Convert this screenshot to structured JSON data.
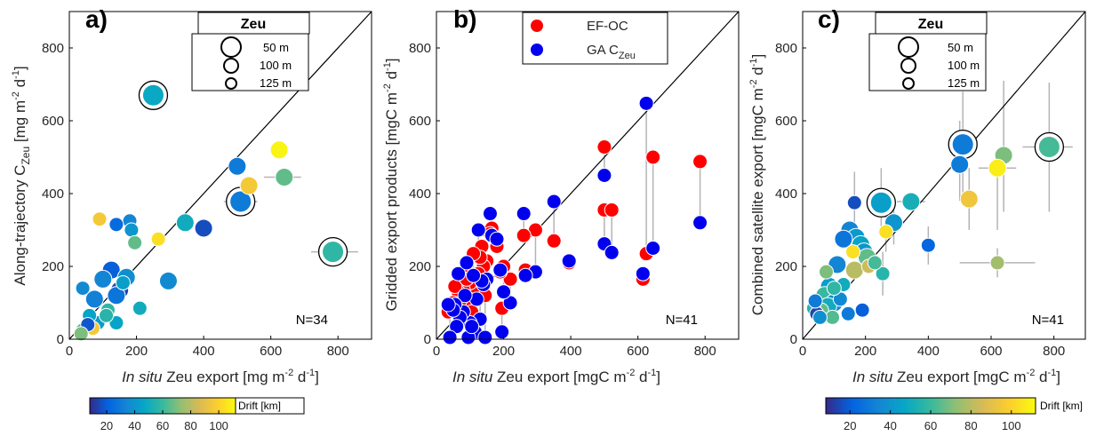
{
  "colors": {
    "ef_oc": "#ff0000",
    "ga_czeu": "#0000ee",
    "error_bar": "#b4b4b4",
    "one_to_one": "#000000",
    "colormap_parula": [
      "#352a87",
      "#0363e1",
      "#1485d4",
      "#06a7c6",
      "#38b99e",
      "#92bf73",
      "#d9ba56",
      "#fcce2e",
      "#f9fb0e"
    ]
  },
  "chart_data": [
    {
      "panel": "a)",
      "type": "scatter",
      "xlabel_italic": "In situ",
      "xlabel_rest": " Zeu export [mg m",
      "xlabel_sup": "-2",
      "xlabel_mid": " d",
      "xlabel_sup2": "-1",
      "xlabel_end": "]",
      "ylabel_main": "Along-trajectory C",
      "ylabel_sub": "Zeu",
      "ylabel_rest": "  [mg m",
      "ylabel_sup": "-2",
      "ylabel_mid": " d",
      "ylabel_sup2": "-1",
      "ylabel_end": "]",
      "xlim": [
        0,
        900
      ],
      "ylim": [
        0,
        900
      ],
      "xticks": [
        "0",
        "200",
        "400",
        "600",
        "800"
      ],
      "yticks": [
        "0",
        "200",
        "400",
        "600",
        "800"
      ],
      "note": "N=34",
      "legend": {
        "title": "Zeu",
        "entries": [
          "50 m",
          "100 m",
          "125 m"
        ]
      },
      "points": [
        {
          "x": 250,
          "y": 670,
          "s": "l",
          "d": 48,
          "ring": true
        },
        {
          "x": 785,
          "y": 240,
          "s": "l",
          "d": 58,
          "ring": true
        },
        {
          "x": 510,
          "y": 378,
          "s": "l",
          "d": 30,
          "ring": true
        },
        {
          "x": 500,
          "y": 475,
          "s": "m",
          "d": 30
        },
        {
          "x": 625,
          "y": 520,
          "s": "m",
          "d": 110
        },
        {
          "x": 535,
          "y": 422,
          "s": "m",
          "d": 96
        },
        {
          "x": 640,
          "y": 445,
          "s": "m",
          "d": 66
        },
        {
          "x": 400,
          "y": 305,
          "s": "m",
          "d": 16
        },
        {
          "x": 345,
          "y": 320,
          "s": "m",
          "d": 50
        },
        {
          "x": 265,
          "y": 275,
          "s": "s",
          "d": 104
        },
        {
          "x": 180,
          "y": 325,
          "s": "s",
          "d": 34
        },
        {
          "x": 140,
          "y": 315,
          "s": "s",
          "d": 24
        },
        {
          "x": 90,
          "y": 330,
          "s": "s",
          "d": 96
        },
        {
          "x": 185,
          "y": 300,
          "s": "s",
          "d": 40
        },
        {
          "x": 195,
          "y": 265,
          "s": "s",
          "d": 66
        },
        {
          "x": 295,
          "y": 160,
          "s": "m",
          "d": 36
        },
        {
          "x": 125,
          "y": 190,
          "s": "m",
          "d": 20
        },
        {
          "x": 170,
          "y": 170,
          "s": "m",
          "d": 38
        },
        {
          "x": 100,
          "y": 165,
          "s": "m",
          "d": 34
        },
        {
          "x": 150,
          "y": 135,
          "s": "m",
          "d": 14
        },
        {
          "x": 75,
          "y": 110,
          "s": "m",
          "d": 32
        },
        {
          "x": 140,
          "y": 120,
          "s": "m",
          "d": 28
        },
        {
          "x": 210,
          "y": 85,
          "s": "s",
          "d": 50
        },
        {
          "x": 140,
          "y": 45,
          "s": "s",
          "d": 46
        },
        {
          "x": 115,
          "y": 80,
          "s": "s",
          "d": 58
        },
        {
          "x": 40,
          "y": 140,
          "s": "s",
          "d": 36
        },
        {
          "x": 85,
          "y": 45,
          "s": "s",
          "d": 42
        },
        {
          "x": 60,
          "y": 65,
          "s": "s",
          "d": 46
        },
        {
          "x": 40,
          "y": 25,
          "s": "s",
          "d": 62
        },
        {
          "x": 70,
          "y": 30,
          "s": "s",
          "d": 96
        },
        {
          "x": 55,
          "y": 40,
          "s": "s",
          "d": 18
        },
        {
          "x": 35,
          "y": 15,
          "s": "s",
          "d": 70
        },
        {
          "x": 110,
          "y": 65,
          "s": "s",
          "d": 56
        },
        {
          "x": 160,
          "y": 155,
          "s": "s",
          "d": 44
        }
      ],
      "xerr": [
        {
          "y": 240,
          "x0": 720,
          "x1": 860
        },
        {
          "y": 445,
          "x0": 580,
          "x1": 690
        },
        {
          "y": 378,
          "x0": 460,
          "x1": 560
        }
      ]
    },
    {
      "panel": "b)",
      "type": "scatter",
      "xlabel_italic": "In situ",
      "xlabel_rest": " Zeu export [mgC m",
      "xlabel_sup": "-2",
      "xlabel_mid": " d",
      "xlabel_sup2": "-1",
      "xlabel_end": "]",
      "ylabel_main": "Gridded export products [mgC m",
      "ylabel_sup": "-2",
      "ylabel_mid": " d",
      "ylabel_sup2": "-1",
      "ylabel_end": "]",
      "xlim": [
        0,
        900
      ],
      "ylim": [
        0,
        900
      ],
      "xticks": [
        "0",
        "200",
        "400",
        "600",
        "800"
      ],
      "yticks": [
        "0",
        "200",
        "400",
        "600",
        "800"
      ],
      "note": "N=41",
      "legend": {
        "entries": [
          {
            "label": "EF-OC",
            "sub": ""
          },
          {
            "label": "GA C",
            "sub": "Zeu"
          }
        ]
      },
      "pairs": [
        {
          "x": 500,
          "r": 528,
          "b": 450
        },
        {
          "x": 500,
          "r": 355,
          "b": 262
        },
        {
          "x": 522,
          "r": 355,
          "b": 238
        },
        {
          "x": 625,
          "r": 235,
          "b": 648
        },
        {
          "x": 645,
          "r": 500,
          "b": 250
        },
        {
          "x": 615,
          "r": 165,
          "b": 180
        },
        {
          "x": 785,
          "r": 488,
          "b": 320
        },
        {
          "x": 395,
          "r": 210,
          "b": 215
        },
        {
          "x": 350,
          "r": 270,
          "b": 378
        },
        {
          "x": 295,
          "r": 300,
          "b": 185
        },
        {
          "x": 260,
          "r": 285,
          "b": 345
        },
        {
          "x": 265,
          "r": 190,
          "b": 175
        },
        {
          "x": 220,
          "r": 165,
          "b": 100
        },
        {
          "x": 195,
          "r": 85,
          "b": 20
        },
        {
          "x": 190,
          "r": 185,
          "b": 190
        },
        {
          "x": 165,
          "r": 305,
          "b": 285
        },
        {
          "x": 160,
          "r": 290,
          "b": 345
        },
        {
          "x": 150,
          "r": 215,
          "b": 165
        },
        {
          "x": 140,
          "r": 200,
          "b": 150
        },
        {
          "x": 135,
          "r": 255,
          "b": 160
        },
        {
          "x": 130,
          "r": 225,
          "b": 55
        },
        {
          "x": 120,
          "r": 170,
          "b": 110
        },
        {
          "x": 115,
          "r": 145,
          "b": 20
        },
        {
          "x": 110,
          "r": 235,
          "b": 175
        },
        {
          "x": 100,
          "r": 155,
          "b": 45
        },
        {
          "x": 95,
          "r": 110,
          "b": 5
        },
        {
          "x": 85,
          "r": 190,
          "b": 120
        },
        {
          "x": 80,
          "r": 135,
          "b": 75
        },
        {
          "x": 70,
          "r": 105,
          "b": 60
        },
        {
          "x": 65,
          "r": 130,
          "b": 180
        },
        {
          "x": 60,
          "r": 85,
          "b": 35
        },
        {
          "x": 55,
          "r": 145,
          "b": 95
        },
        {
          "x": 50,
          "r": 100,
          "b": 80
        },
        {
          "x": 40,
          "r": 90,
          "b": 5
        },
        {
          "x": 35,
          "r": 75,
          "b": 95
        },
        {
          "x": 180,
          "r": 255,
          "b": 275
        },
        {
          "x": 145,
          "r": 120,
          "b": 5
        },
        {
          "x": 125,
          "r": 180,
          "b": 300
        },
        {
          "x": 105,
          "r": 75,
          "b": 35
        },
        {
          "x": 90,
          "r": 165,
          "b": 210
        },
        {
          "x": 200,
          "r": 200,
          "b": 130
        }
      ]
    },
    {
      "panel": "c)",
      "type": "scatter",
      "xlabel_italic": "In situ",
      "xlabel_rest": " Zeu export [mgC m",
      "xlabel_sup": "-2",
      "xlabel_mid": " d",
      "xlabel_sup2": "-1",
      "xlabel_end": "]",
      "ylabel_main": "Combined satellite export [mgC m",
      "ylabel_sup": "-2",
      "ylabel_mid": " d",
      "ylabel_sup2": "-1",
      "ylabel_end": "]",
      "xlim": [
        0,
        900
      ],
      "ylim": [
        0,
        900
      ],
      "xticks": [
        "0",
        "200",
        "400",
        "600",
        "800"
      ],
      "yticks": [
        "0",
        "200",
        "400",
        "600",
        "800"
      ],
      "note": "N=41",
      "legend": {
        "title": "Zeu",
        "entries": [
          "50 m",
          "100 m",
          "125 m"
        ]
      },
      "points": [
        {
          "x": 785,
          "y": 528,
          "s": "l",
          "d": 62,
          "ring": true,
          "ey": [
            350,
            705
          ],
          "ex": [
            700,
            860
          ]
        },
        {
          "x": 510,
          "y": 535,
          "s": "l",
          "d": 30,
          "ring": true,
          "ey": [
            380,
            680
          ]
        },
        {
          "x": 250,
          "y": 375,
          "s": "l",
          "d": 44,
          "ring": true,
          "ey": [
            280,
            470
          ]
        },
        {
          "x": 500,
          "y": 480,
          "s": "m",
          "d": 30,
          "ey": [
            380,
            600
          ]
        },
        {
          "x": 640,
          "y": 505,
          "s": "m",
          "d": 70,
          "ey": [
            350,
            710
          ]
        },
        {
          "x": 620,
          "y": 470,
          "s": "m",
          "d": 108,
          "ey": [
            300,
            520
          ],
          "ex": [
            560,
            680
          ]
        },
        {
          "x": 530,
          "y": 385,
          "s": "m",
          "d": 94,
          "ey": [
            300,
            470
          ]
        },
        {
          "x": 345,
          "y": 378,
          "s": "m",
          "d": 52,
          "ex": [
            300,
            390
          ]
        },
        {
          "x": 290,
          "y": 320,
          "s": "m",
          "d": 40,
          "ey": [
            260,
            380
          ]
        },
        {
          "x": 400,
          "y": 258,
          "s": "s",
          "d": 22,
          "ey": [
            205,
            310
          ]
        },
        {
          "x": 620,
          "y": 210,
          "s": "s",
          "d": 76,
          "ex": [
            500,
            740
          ],
          "ey": [
            170,
            250
          ]
        },
        {
          "x": 255,
          "y": 180,
          "s": "s",
          "d": 56,
          "ey": [
            120,
            240
          ]
        },
        {
          "x": 265,
          "y": 295,
          "s": "s",
          "d": 104,
          "ey": [
            240,
            360
          ]
        },
        {
          "x": 165,
          "y": 375,
          "s": "s",
          "d": 16,
          "ey": [
            300,
            460
          ]
        },
        {
          "x": 150,
          "y": 300,
          "s": "m",
          "d": 34
        },
        {
          "x": 170,
          "y": 280,
          "s": "m",
          "d": 42
        },
        {
          "x": 185,
          "y": 260,
          "s": "m",
          "d": 46
        },
        {
          "x": 195,
          "y": 240,
          "s": "m",
          "d": 40
        },
        {
          "x": 130,
          "y": 275,
          "s": "m",
          "d": 28
        },
        {
          "x": 205,
          "y": 225,
          "s": "m",
          "d": 66
        },
        {
          "x": 165,
          "y": 190,
          "s": "m",
          "d": 80
        },
        {
          "x": 110,
          "y": 205,
          "s": "m",
          "d": 34
        },
        {
          "x": 85,
          "y": 145,
          "s": "m",
          "d": 44
        },
        {
          "x": 70,
          "y": 120,
          "s": "m",
          "d": 60
        },
        {
          "x": 100,
          "y": 100,
          "s": "m",
          "d": 36
        },
        {
          "x": 80,
          "y": 90,
          "s": "m",
          "d": 50
        },
        {
          "x": 60,
          "y": 80,
          "s": "s",
          "d": 66
        },
        {
          "x": 35,
          "y": 85,
          "s": "s",
          "d": 56
        },
        {
          "x": 45,
          "y": 70,
          "s": "s",
          "d": 14
        },
        {
          "x": 40,
          "y": 105,
          "s": "s",
          "d": 30
        },
        {
          "x": 145,
          "y": 70,
          "s": "s",
          "d": 30
        },
        {
          "x": 190,
          "y": 80,
          "s": "s",
          "d": 20
        },
        {
          "x": 120,
          "y": 110,
          "s": "s",
          "d": 36
        },
        {
          "x": 75,
          "y": 185,
          "s": "s",
          "d": 70
        },
        {
          "x": 95,
          "y": 60,
          "s": "s",
          "d": 64
        },
        {
          "x": 55,
          "y": 60,
          "s": "s",
          "d": 38
        },
        {
          "x": 130,
          "y": 150,
          "s": "s",
          "d": 50
        },
        {
          "x": 160,
          "y": 240,
          "s": "s",
          "d": 104
        },
        {
          "x": 210,
          "y": 200,
          "s": "s",
          "d": 84
        },
        {
          "x": 230,
          "y": 210,
          "s": "s",
          "d": 62
        },
        {
          "x": 100,
          "y": 140,
          "s": "s",
          "d": 58
        }
      ]
    }
  ],
  "colorbar": {
    "title": "Drift [km]",
    "ticks": [
      "20",
      "40",
      "60",
      "80",
      "100"
    ],
    "range": [
      8,
      112
    ]
  }
}
